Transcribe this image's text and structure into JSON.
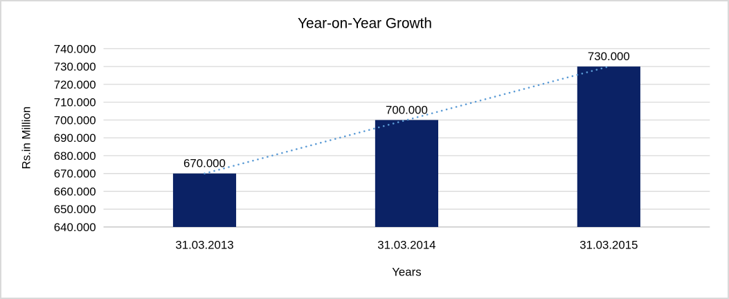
{
  "chart_data": {
    "type": "bar",
    "title": "Year-on-Year Growth",
    "xlabel": "Years",
    "ylabel": "Rs.in Million",
    "categories": [
      "31.03.2013",
      "31.03.2014",
      "31.03.2015"
    ],
    "values": [
      670,
      700,
      730
    ],
    "data_labels": [
      "670.000",
      "700.000",
      "730.000"
    ],
    "ylim": [
      640,
      740
    ],
    "ytick_values": [
      640,
      650,
      660,
      670,
      680,
      690,
      700,
      710,
      720,
      730,
      740
    ],
    "ytick_labels": [
      "640.000",
      "650.000",
      "660.000",
      "670.000",
      "680.000",
      "690.000",
      "700.000",
      "710.000",
      "720.000",
      "730.000",
      "740.000"
    ],
    "grid": true,
    "legend": "none",
    "trendline": {
      "type": "linear",
      "style": "dotted"
    },
    "colors": {
      "bar": "#0b2265",
      "trendline": "#5b9bd5",
      "gridline": "#d9d9d9",
      "axis_line": "#c3c3c3",
      "text": "#000000",
      "frame_border": "#d9d9d9",
      "background": "#ffffff"
    }
  }
}
